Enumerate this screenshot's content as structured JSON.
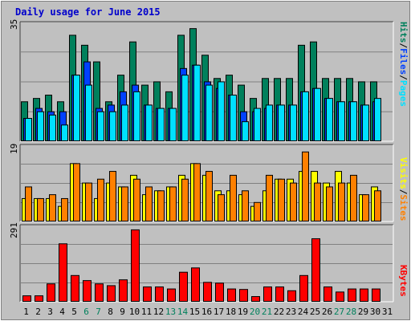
{
  "title": "Daily usage for June 2015",
  "colors": {
    "hits": "#00805c",
    "files": "#0040ff",
    "pages": "#00e0ff",
    "visits": "#ffff00",
    "sites": "#ff8000",
    "kbytes": "#ff0000",
    "weekend_label": "#00805c",
    "weekday_label": "#000000",
    "background": "#c0c0c0",
    "plot_background": "#c0c0c0",
    "gridline": "#808080"
  },
  "legend": {
    "pages": "Pages",
    "files": "Files",
    "hits": "Hits",
    "sites": "Sites",
    "visits": "Visits",
    "kbytes": "KBytes",
    "sep": "/"
  },
  "chart_data": [
    {
      "type": "bar",
      "panel": "hits-files-pages",
      "categories": [
        "1",
        "2",
        "3",
        "4",
        "5",
        "6",
        "7",
        "8",
        "9",
        "10",
        "11",
        "12",
        "13",
        "14",
        "15",
        "16",
        "17",
        "18",
        "19",
        "20",
        "21",
        "22",
        "23",
        "24",
        "25",
        "26",
        "27",
        "28",
        "29",
        "30",
        "31"
      ],
      "ymax_label": "35",
      "ylim": [
        0,
        35
      ],
      "grid": true,
      "series": [
        {
          "name": "Hits",
          "values": [
            12,
            13,
            14,
            12,
            32,
            29,
            24,
            12,
            20,
            30,
            17,
            18,
            15,
            32,
            34,
            26,
            19,
            20,
            17,
            13,
            19,
            19,
            19,
            29,
            30,
            19,
            19,
            19,
            18,
            18,
            0
          ]
        },
        {
          "name": "Files",
          "values": [
            7,
            10,
            9,
            9,
            20,
            24,
            10,
            11,
            15,
            17,
            11,
            10,
            10,
            22,
            23,
            18,
            16,
            14,
            9,
            9,
            10,
            11,
            11,
            15,
            16,
            13,
            12,
            12,
            11,
            12,
            0
          ]
        },
        {
          "name": "Pages",
          "values": [
            7,
            9,
            8,
            5,
            20,
            17,
            9,
            9,
            11,
            15,
            11,
            10,
            10,
            20,
            23,
            17,
            18,
            14,
            6,
            10,
            11,
            11,
            11,
            15,
            16,
            13,
            12,
            12,
            11,
            13,
            0
          ]
        }
      ]
    },
    {
      "type": "bar",
      "panel": "visits-sites",
      "categories": [
        "1",
        "2",
        "3",
        "4",
        "5",
        "6",
        "7",
        "8",
        "9",
        "10",
        "11",
        "12",
        "13",
        "14",
        "15",
        "16",
        "17",
        "18",
        "19",
        "20",
        "21",
        "22",
        "23",
        "24",
        "25",
        "26",
        "27",
        "28",
        "29",
        "30",
        "31"
      ],
      "ymax_label": "19",
      "ylim": [
        0,
        19
      ],
      "grid": true,
      "series": [
        {
          "name": "Visits",
          "values": [
            6,
            6,
            6,
            4,
            15,
            10,
            6,
            10,
            9,
            12,
            7,
            8,
            9,
            12,
            15,
            12,
            8,
            8,
            7,
            4,
            8,
            11,
            11,
            13,
            13,
            10,
            13,
            10,
            7,
            9,
            0
          ]
        },
        {
          "name": "Sites",
          "values": [
            9,
            6,
            7,
            6,
            15,
            10,
            11,
            13,
            9,
            11,
            9,
            8,
            9,
            11,
            15,
            13,
            7,
            12,
            8,
            5,
            12,
            11,
            10,
            18,
            10,
            9,
            10,
            12,
            7,
            8,
            0
          ]
        }
      ]
    },
    {
      "type": "bar",
      "panel": "kbytes",
      "categories": [
        "1",
        "2",
        "3",
        "4",
        "5",
        "6",
        "7",
        "8",
        "9",
        "10",
        "11",
        "12",
        "13",
        "14",
        "15",
        "16",
        "17",
        "18",
        "19",
        "20",
        "21",
        "22",
        "23",
        "24",
        "25",
        "26",
        "27",
        "28",
        "29",
        "30",
        "31"
      ],
      "ymax_label": "291",
      "ylim": [
        0,
        291
      ],
      "grid": true,
      "series": [
        {
          "name": "KBytes",
          "values": [
            25,
            25,
            72,
            230,
            105,
            85,
            72,
            65,
            88,
            285,
            60,
            60,
            52,
            118,
            135,
            78,
            75,
            52,
            50,
            22,
            60,
            60,
            45,
            105,
            250,
            60,
            40,
            52,
            52,
            52,
            0
          ]
        }
      ]
    }
  ],
  "x_labels": [
    {
      "text": "1",
      "weekend": false
    },
    {
      "text": "2",
      "weekend": false
    },
    {
      "text": "3",
      "weekend": false
    },
    {
      "text": "4",
      "weekend": false
    },
    {
      "text": "5",
      "weekend": false
    },
    {
      "text": "6",
      "weekend": true
    },
    {
      "text": "7",
      "weekend": true
    },
    {
      "text": "8",
      "weekend": false
    },
    {
      "text": "9",
      "weekend": false
    },
    {
      "text": "10",
      "weekend": false
    },
    {
      "text": "11",
      "weekend": false
    },
    {
      "text": "12",
      "weekend": false
    },
    {
      "text": "13",
      "weekend": true
    },
    {
      "text": "14",
      "weekend": true
    },
    {
      "text": "15",
      "weekend": false
    },
    {
      "text": "16",
      "weekend": false
    },
    {
      "text": "17",
      "weekend": false
    },
    {
      "text": "18",
      "weekend": false
    },
    {
      "text": "19",
      "weekend": false
    },
    {
      "text": "20",
      "weekend": true
    },
    {
      "text": "21",
      "weekend": true
    },
    {
      "text": "22",
      "weekend": false
    },
    {
      "text": "23",
      "weekend": false
    },
    {
      "text": "24",
      "weekend": false
    },
    {
      "text": "25",
      "weekend": false
    },
    {
      "text": "26",
      "weekend": false
    },
    {
      "text": "27",
      "weekend": true
    },
    {
      "text": "28",
      "weekend": true
    },
    {
      "text": "29",
      "weekend": false
    },
    {
      "text": "30",
      "weekend": false
    },
    {
      "text": "31",
      "weekend": false
    }
  ]
}
